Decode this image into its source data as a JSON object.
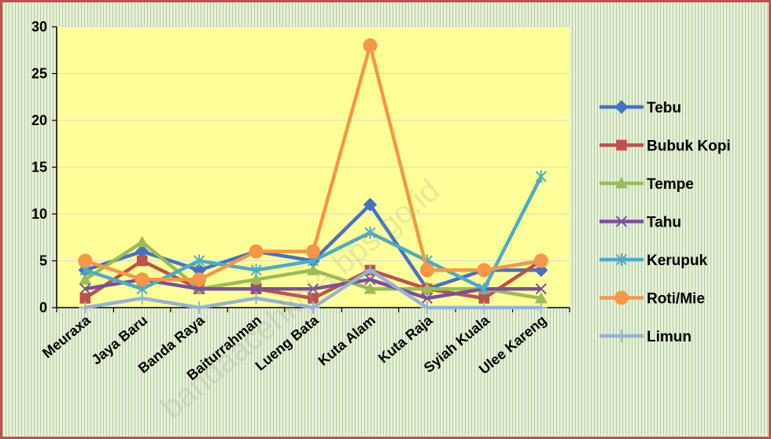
{
  "chart_data": {
    "type": "line",
    "categories": [
      "Meuraxa",
      "Jaya Baru",
      "Banda Raya",
      "Baiturrahman",
      "Lueng Bata",
      "Kuta Alam",
      "Kuta Raja",
      "Syiah Kuala",
      "Ulee Kareng"
    ],
    "series": [
      {
        "name": "Tebu",
        "color": "#4472c4",
        "marker": "diamond",
        "values": [
          4,
          6,
          4,
          6,
          5,
          11,
          2,
          4,
          4
        ]
      },
      {
        "name": "Bubuk Kopi",
        "color": "#c0504d",
        "marker": "square",
        "values": [
          1,
          5,
          2,
          2,
          1,
          4,
          2,
          1,
          5
        ]
      },
      {
        "name": "Tempe",
        "color": "#9bbb59",
        "marker": "triangle",
        "values": [
          3,
          7,
          2,
          3,
          4,
          2,
          2,
          2,
          1
        ]
      },
      {
        "name": "Tahu",
        "color": "#7b4f9d",
        "marker": "x",
        "values": [
          2,
          3,
          2,
          2,
          2,
          3,
          1,
          2,
          2
        ]
      },
      {
        "name": "Kerupuk",
        "color": "#4bacc6",
        "marker": "star",
        "values": [
          4,
          2,
          5,
          4,
          5,
          8,
          5,
          2,
          14
        ]
      },
      {
        "name": "Roti/Mie",
        "color": "#f79646",
        "marker": "circle",
        "values": [
          5,
          3,
          3,
          6,
          6,
          28,
          4,
          4,
          5
        ]
      },
      {
        "name": "Limun",
        "color": "#95b3d7",
        "marker": "plus",
        "values": [
          0,
          1,
          0,
          1,
          0,
          4,
          0,
          0,
          0
        ]
      }
    ],
    "y_ticks": [
      "0",
      "5",
      "10",
      "15",
      "20",
      "25",
      "30"
    ],
    "ylim": [
      0,
      30
    ],
    "grid": true,
    "legend_position": "right",
    "plot_background": "#ffff99",
    "watermark": "bandaacehkota.bps.go.id"
  }
}
